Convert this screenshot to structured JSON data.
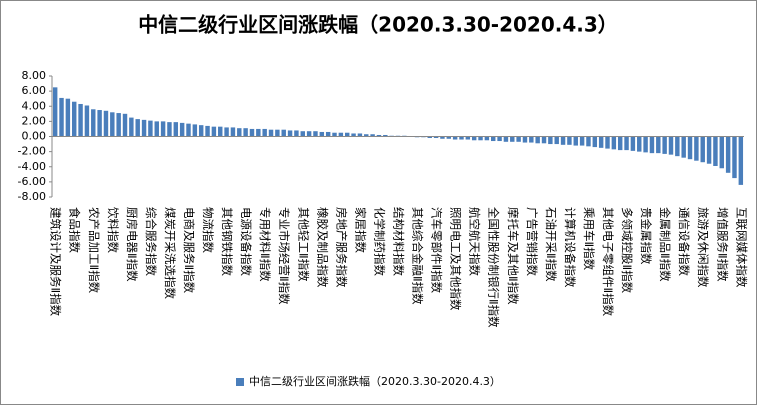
{
  "chart_data": {
    "type": "bar",
    "title": "中信二级行业区间涨跌幅（2020.3.30-2020.4.3）",
    "categories": [
      "建筑设计及服务Ⅱ指数",
      null,
      null,
      "食品指数",
      null,
      null,
      "农产品加工Ⅱ指数",
      null,
      null,
      "饮料指数",
      null,
      null,
      "厨房电器Ⅱ指数",
      null,
      null,
      "综合服务指数",
      null,
      null,
      "煤炭开采洗选指数",
      null,
      null,
      "电商及服务Ⅱ指数",
      null,
      null,
      "物流指数",
      null,
      null,
      "其他钢铁指数",
      null,
      null,
      "电源设备指数",
      null,
      null,
      "专用材料Ⅱ指数",
      null,
      null,
      "专业市场经营Ⅱ指数",
      null,
      null,
      "其他轻工Ⅱ指数",
      null,
      null,
      "橡胶及制品指数",
      null,
      null,
      "房地产服务指数",
      null,
      null,
      "家居指数",
      null,
      null,
      "化学制药指数",
      null,
      null,
      "结构材料指数",
      null,
      null,
      "其他综合金融Ⅱ指数",
      null,
      null,
      "汽车零部件Ⅱ指数",
      null,
      null,
      "照明电工及其他指数",
      null,
      null,
      "航空航天指数",
      null,
      null,
      "全国性股份制银行Ⅱ指数",
      null,
      null,
      "摩托车及其他Ⅱ指数",
      null,
      null,
      "广告营销指数",
      null,
      null,
      "石油开采Ⅱ指数",
      null,
      null,
      "计算机设备指数",
      null,
      null,
      "乘用车Ⅱ指数",
      null,
      null,
      "其他电子零组件Ⅱ指数",
      null,
      null,
      "多领域控股Ⅱ指数",
      null,
      null,
      "贵金属指数",
      null,
      null,
      "金属制品Ⅱ指数",
      null,
      null,
      "通信设备指数",
      null,
      null,
      "旅游及休闲指数",
      null,
      null,
      "增值服务Ⅱ指数",
      null,
      null,
      "互联网媒体指数"
    ],
    "series": [
      {
        "name": "中信二级行业区间涨跌幅（2020.3.30-2020.4.3）",
        "color": "#4a7ebb",
        "values": [
          6.5,
          5.1,
          5.0,
          4.6,
          4.3,
          4.1,
          3.6,
          3.5,
          3.4,
          3.2,
          3.1,
          3.0,
          2.5,
          2.3,
          2.2,
          2.1,
          2.0,
          2.0,
          1.9,
          1.9,
          1.8,
          1.7,
          1.6,
          1.5,
          1.4,
          1.3,
          1.3,
          1.2,
          1.2,
          1.1,
          1.1,
          1.0,
          1.0,
          1.0,
          0.9,
          0.9,
          0.9,
          0.8,
          0.8,
          0.7,
          0.7,
          0.7,
          0.6,
          0.6,
          0.5,
          0.5,
          0.5,
          0.4,
          0.4,
          0.3,
          0.3,
          0.2,
          0.2,
          0.1,
          0.1,
          0.1,
          0.0,
          -0.1,
          -0.1,
          -0.2,
          -0.2,
          -0.3,
          -0.3,
          -0.4,
          -0.4,
          -0.4,
          -0.5,
          -0.5,
          -0.5,
          -0.6,
          -0.6,
          -0.7,
          -0.7,
          -0.7,
          -0.8,
          -0.8,
          -0.9,
          -0.9,
          -1.0,
          -1.0,
          -1.1,
          -1.1,
          -1.2,
          -1.2,
          -1.3,
          -1.4,
          -1.5,
          -1.6,
          -1.7,
          -1.8,
          -1.8,
          -1.9,
          -2.0,
          -2.1,
          -2.2,
          -2.2,
          -2.3,
          -2.4,
          -2.6,
          -2.8,
          -3.0,
          -3.2,
          -3.4,
          -3.6,
          -3.9,
          -4.2,
          -4.8,
          -5.5,
          -6.4
        ]
      }
    ],
    "ylim": [
      -8,
      8
    ],
    "yticks": [
      {
        "value": 8,
        "label": "8.00"
      },
      {
        "value": 6,
        "label": "6.00"
      },
      {
        "value": 4,
        "label": "4.00"
      },
      {
        "value": 2,
        "label": "2.00"
      },
      {
        "value": 0,
        "label": "0.00"
      },
      {
        "value": -2,
        "label": "-2.00"
      },
      {
        "value": -4,
        "label": "-4.00"
      },
      {
        "value": -6,
        "label": "-6.00"
      },
      {
        "value": -8,
        "label": "-8.00"
      }
    ],
    "legend": "bottom"
  }
}
